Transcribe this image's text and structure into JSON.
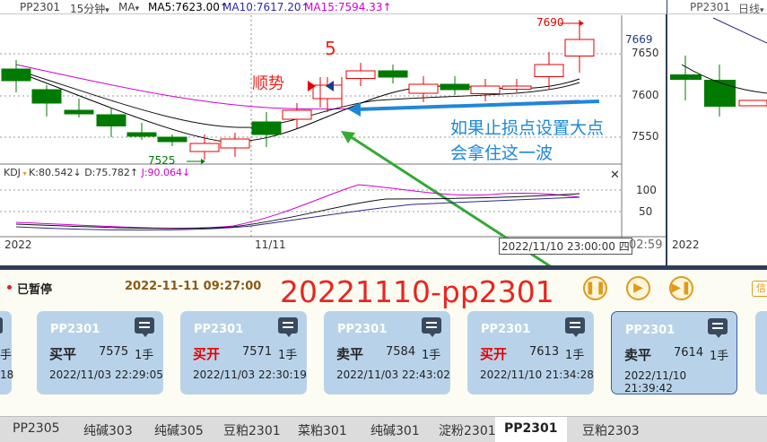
{
  "header": {
    "symbol": "PP2301",
    "period": "15分钟",
    "indicator": "MA",
    "ma5": "MA5:7623.00↑",
    "ma10": "MA10:7617.20↑",
    "ma15": "MA15:7594.33↑"
  },
  "right_header": {
    "symbol": "PP2301",
    "period": "日线"
  },
  "price_axis": [
    "7650",
    "7600",
    "7550"
  ],
  "price_readout": "7669",
  "kdj_header": {
    "name": "KDJ",
    "k": "K:80.542↓",
    "d": "D:75.782↑",
    "j": "J:90.064↓"
  },
  "kdj_axis": [
    "100",
    "50"
  ],
  "time_axis": {
    "left": "2022",
    "mid": "11/11",
    "cursor": "2022/11/10 23:00:00 四",
    "clock": "02:59",
    "right": "2022"
  },
  "annotations": {
    "high_price": "7690",
    "low_price": "7525",
    "trend": "顺势",
    "count": "5",
    "note_line1": "如果止损点设置大点",
    "note_line2": "会拿住这一波"
  },
  "colors": {
    "up": "#e60000",
    "down": "#007a00",
    "ma5": "#000000",
    "ma10": "#111111",
    "ma15": "#d100d1",
    "note": "#1e88d8",
    "arrow": "#33aa33"
  },
  "playback": {
    "status": "已暂停",
    "datetime": "2022-11-11 09:27:00",
    "title": "20221110-pp2301",
    "edge_tag": "信"
  },
  "left_card_partial": {
    "qty": "手",
    "time": "18"
  },
  "cards": [
    {
      "symbol": "PP2301",
      "action": "买平",
      "action_color": "#222222",
      "price": "7575",
      "qty": "1手",
      "time": "2022/11/03 22:29:05"
    },
    {
      "symbol": "PP2301",
      "action": "买开",
      "action_color": "#e60000",
      "price": "7571",
      "qty": "1手",
      "time": "2022/11/03 22:30:19"
    },
    {
      "symbol": "PP2301",
      "action": "卖平",
      "action_color": "#222222",
      "price": "7584",
      "qty": "1手",
      "time": "2022/11/03 22:43:02"
    },
    {
      "symbol": "PP2301",
      "action": "买开",
      "action_color": "#e60000",
      "price": "7613",
      "qty": "1手",
      "time": "2022/11/10 21:34:28"
    },
    {
      "symbol": "PP2301",
      "action": "卖平",
      "action_color": "#222222",
      "price": "7614",
      "qty": "1手",
      "time": "2022/11/10 21:39:42"
    }
  ],
  "tabs": [
    "PP2305",
    "纯碱303",
    "纯碱305",
    "豆粕2301",
    "菜粕301",
    "纯碱301",
    "淀粉2301",
    "PP2301",
    "豆粕2303"
  ],
  "active_tab": "PP2301"
}
